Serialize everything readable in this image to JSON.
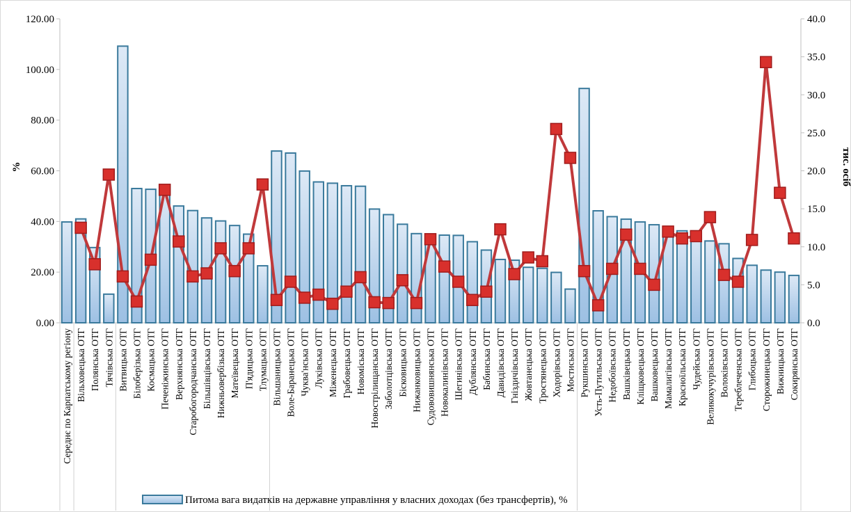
{
  "chart_data": {
    "type": "bar+line",
    "title": "",
    "categories": [
      "Середнє по Карпатському регіону",
      "Вільховецька ОТГ",
      "Полянська ОТГ",
      "Тячівська ОТГ",
      "Витвицька ОТГ",
      "Білоберізька ОТГ",
      "Космацька ОТГ",
      "Печеніжинська ОТГ",
      "Верхнянська ОТГ",
      "Старобогородчанська ОТГ",
      "Більшівцівська ОТГ",
      "Нижньовербізька ОТГ",
      "Матеївецька ОТГ",
      "П'ядицька ОТГ",
      "Тлумацька ОТГ",
      "Вільшаницька ОТГ",
      "Воле-Баранецька ОТГ",
      "Чуква'нська ОТГ",
      "Луківська ОТГ",
      "Міженецька ОТГ",
      "Грабовецька ОТГ",
      "Новоміська ОТГ",
      "Новострілищанська ОТГ",
      "Заболотцівська ОТГ",
      "Бісковицька ОТГ",
      "Нижанковицька ОТГ",
      "Судововишнянська ОТГ",
      "Новокалинівська ОТГ",
      "Шегинівська ОТГ",
      "Дублянська ОТГ",
      "Бабинська ОТГ",
      "Давидівська ОТГ",
      "Гніздичівська ОТГ",
      "Жовтанецька ОТГ",
      "Тростянецька ОТГ",
      "Ходорівська ОТГ",
      "Мостиська ОТГ",
      "Рукшинська ОТГ",
      "Усть-Путильська ОТГ",
      "Недобоївська ОТГ",
      "Вашківецька ОТГ",
      "Кліщковецька ОТГ",
      "Вашковецька ОТГ",
      "Мамалигівська ОТГ",
      "Красноїльська ОТГ",
      "Чудейська ОТГ",
      "Великокучурівська ОТГ",
      "Волоківська ОТГ",
      "Тереблеченська ОТГ",
      "Глибоцька ОТГ",
      "Сторожинецька ОТГ",
      "Вижницька ОТГ",
      "Сокирянська ОТГ"
    ],
    "series": [
      {
        "name": "Питома вага видатків на державне управління у власних доходах (без трансфертів), %",
        "type": "bar",
        "axis": "left",
        "values": [
          39.8,
          41.0,
          29.7,
          11.3,
          109.2,
          53.0,
          52.7,
          52.7,
          46.1,
          44.3,
          41.4,
          40.2,
          38.4,
          35.0,
          22.5,
          67.8,
          67.0,
          59.9,
          55.6,
          55.1,
          54.1,
          53.9,
          44.9,
          42.7,
          38.9,
          35.2,
          34.7,
          34.6,
          34.5,
          32.0,
          28.7,
          25.0,
          24.7,
          21.9,
          21.5,
          19.9,
          13.3,
          92.5,
          44.2,
          41.9,
          40.9,
          39.8,
          38.7,
          37.8,
          36.3,
          36.1,
          32.3,
          31.2,
          25.4,
          22.7,
          20.8,
          20.0,
          18.7
        ]
      },
      {
        "name": "",
        "type": "line",
        "axis": "right",
        "values": [
          null,
          12.5,
          7.7,
          19.5,
          6.1,
          2.8,
          8.3,
          17.5,
          10.7,
          6.1,
          6.5,
          9.8,
          6.8,
          9.8,
          18.2,
          3.0,
          5.4,
          3.3,
          3.7,
          2.5,
          4.1,
          6.0,
          2.7,
          2.6,
          5.6,
          2.6,
          11.0,
          7.4,
          5.4,
          3.0,
          4.1,
          12.3,
          6.4,
          8.6,
          8.1,
          25.5,
          21.7,
          6.8,
          2.3,
          7.1,
          11.6,
          7.1,
          5.0,
          12.0,
          11.1,
          11.4,
          13.9,
          6.3,
          5.4,
          10.9,
          34.3,
          17.1,
          11.1
        ]
      }
    ],
    "y_axis": {
      "label": "%",
      "min": 0,
      "max": 120,
      "ticks": [
        "0.00",
        "20.00",
        "40.00",
        "60.00",
        "80.00",
        "100.00",
        "120.00"
      ]
    },
    "y2_axis": {
      "label": "тис. осіб",
      "min": 0,
      "max": 40,
      "ticks": [
        "0.0",
        "5.0",
        "10.0",
        "15.0",
        "20.0",
        "25.0",
        "30.0",
        "35.0",
        "40.0"
      ]
    },
    "category_group_separators_after": [
      0,
      3,
      14,
      36
    ],
    "grid": false,
    "legend": {
      "placement": "bottom",
      "entries": [
        "Питома вага видатків на державне управління у власних доходах (без трансфертів), %"
      ]
    },
    "colors": {
      "bar_fill_top": "#dde9f6",
      "bar_fill_bottom": "#9dc0e3",
      "bar_stroke": "#3a7a9c",
      "line": "#c0393b",
      "marker": "#d8302c",
      "marker_stroke": "#a01c1c"
    }
  }
}
